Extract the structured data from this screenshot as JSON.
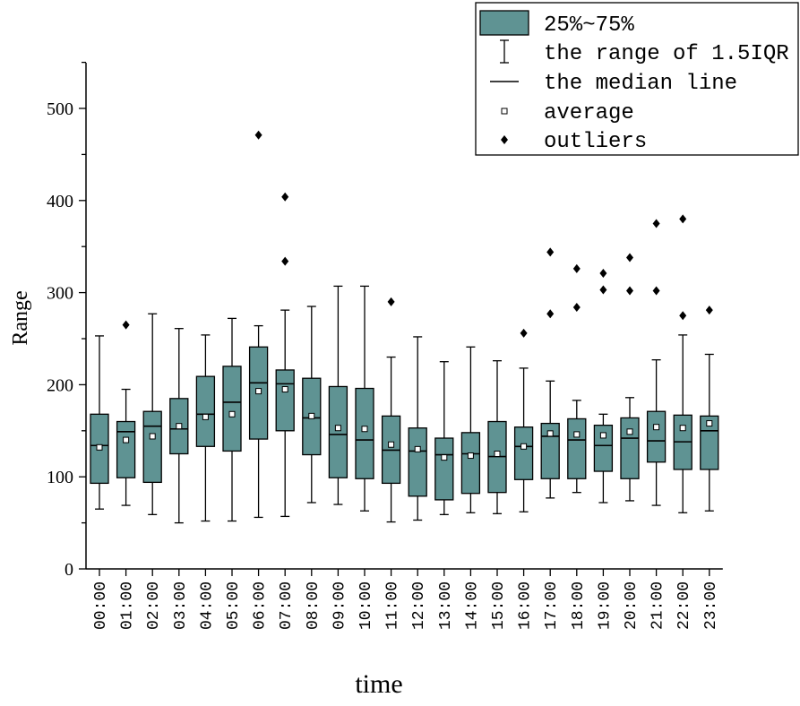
{
  "chart_data": {
    "type": "box",
    "xlabel": "time",
    "ylabel": "Range",
    "ylim": [
      0,
      550
    ],
    "y_ticks": [
      0,
      100,
      200,
      300,
      400,
      500
    ],
    "categories": [
      "00:00",
      "01:00",
      "02:00",
      "03:00",
      "04:00",
      "05:00",
      "06:00",
      "07:00",
      "08:00",
      "09:00",
      "10:00",
      "11:00",
      "12:00",
      "13:00",
      "14:00",
      "15:00",
      "16:00",
      "17:00",
      "18:00",
      "19:00",
      "20:00",
      "21:00",
      "22:00",
      "23:00"
    ],
    "boxes": [
      {
        "whisker_low": 65,
        "q1": 93,
        "median": 134,
        "q3": 168,
        "whisker_high": 253,
        "mean": 132,
        "outliers": []
      },
      {
        "whisker_low": 69,
        "q1": 99,
        "median": 149,
        "q3": 160,
        "whisker_high": 195,
        "mean": 140,
        "outliers": [
          265
        ]
      },
      {
        "whisker_low": 59,
        "q1": 94,
        "median": 155,
        "q3": 171,
        "whisker_high": 277,
        "mean": 144,
        "outliers": []
      },
      {
        "whisker_low": 50,
        "q1": 125,
        "median": 152,
        "q3": 185,
        "whisker_high": 261,
        "mean": 155,
        "outliers": []
      },
      {
        "whisker_low": 52,
        "q1": 133,
        "median": 168,
        "q3": 209,
        "whisker_high": 254,
        "mean": 165,
        "outliers": []
      },
      {
        "whisker_low": 52,
        "q1": 128,
        "median": 181,
        "q3": 220,
        "whisker_high": 272,
        "mean": 168,
        "outliers": []
      },
      {
        "whisker_low": 56,
        "q1": 141,
        "median": 202,
        "q3": 241,
        "whisker_high": 264,
        "mean": 193,
        "outliers": [
          471
        ]
      },
      {
        "whisker_low": 57,
        "q1": 150,
        "median": 201,
        "q3": 216,
        "whisker_high": 281,
        "mean": 195,
        "outliers": [
          334,
          404
        ]
      },
      {
        "whisker_low": 72,
        "q1": 124,
        "median": 164,
        "q3": 207,
        "whisker_high": 285,
        "mean": 166,
        "outliers": []
      },
      {
        "whisker_low": 70,
        "q1": 99,
        "median": 146,
        "q3": 198,
        "whisker_high": 307,
        "mean": 153,
        "outliers": []
      },
      {
        "whisker_low": 63,
        "q1": 98,
        "median": 140,
        "q3": 196,
        "whisker_high": 307,
        "mean": 152,
        "outliers": []
      },
      {
        "whisker_low": 51,
        "q1": 93,
        "median": 129,
        "q3": 166,
        "whisker_high": 230,
        "mean": 135,
        "outliers": [
          290
        ]
      },
      {
        "whisker_low": 53,
        "q1": 79,
        "median": 128,
        "q3": 153,
        "whisker_high": 252,
        "mean": 130,
        "outliers": []
      },
      {
        "whisker_low": 59,
        "q1": 75,
        "median": 124,
        "q3": 142,
        "whisker_high": 225,
        "mean": 121,
        "outliers": []
      },
      {
        "whisker_low": 61,
        "q1": 82,
        "median": 125,
        "q3": 148,
        "whisker_high": 241,
        "mean": 123,
        "outliers": []
      },
      {
        "whisker_low": 60,
        "q1": 83,
        "median": 122,
        "q3": 160,
        "whisker_high": 226,
        "mean": 125,
        "outliers": []
      },
      {
        "whisker_low": 62,
        "q1": 97,
        "median": 133,
        "q3": 154,
        "whisker_high": 218,
        "mean": 133,
        "outliers": [
          256
        ]
      },
      {
        "whisker_low": 77,
        "q1": 98,
        "median": 144,
        "q3": 158,
        "whisker_high": 204,
        "mean": 147,
        "outliers": [
          277,
          344
        ]
      },
      {
        "whisker_low": 83,
        "q1": 98,
        "median": 140,
        "q3": 163,
        "whisker_high": 183,
        "mean": 146,
        "outliers": [
          284,
          326
        ]
      },
      {
        "whisker_low": 72,
        "q1": 106,
        "median": 134,
        "q3": 156,
        "whisker_high": 168,
        "mean": 145,
        "outliers": [
          303,
          321
        ]
      },
      {
        "whisker_low": 74,
        "q1": 98,
        "median": 142,
        "q3": 164,
        "whisker_high": 186,
        "mean": 149,
        "outliers": [
          302,
          338
        ]
      },
      {
        "whisker_low": 69,
        "q1": 116,
        "median": 139,
        "q3": 171,
        "whisker_high": 227,
        "mean": 154,
        "outliers": [
          302,
          375
        ]
      },
      {
        "whisker_low": 61,
        "q1": 108,
        "median": 138,
        "q3": 167,
        "whisker_high": 254,
        "mean": 153,
        "outliers": [
          275,
          380
        ]
      },
      {
        "whisker_low": 63,
        "q1": 108,
        "median": 150,
        "q3": 166,
        "whisker_high": 233,
        "mean": 158,
        "outliers": [
          281
        ]
      }
    ],
    "legend": {
      "placement": "top-right",
      "entries": [
        "25%~75%",
        "the range of 1.5IQR",
        "the median line",
        "average",
        "outliers"
      ]
    },
    "colors": {
      "box_fill": "#5F9393",
      "stroke": "#000000"
    },
    "grid": false
  }
}
